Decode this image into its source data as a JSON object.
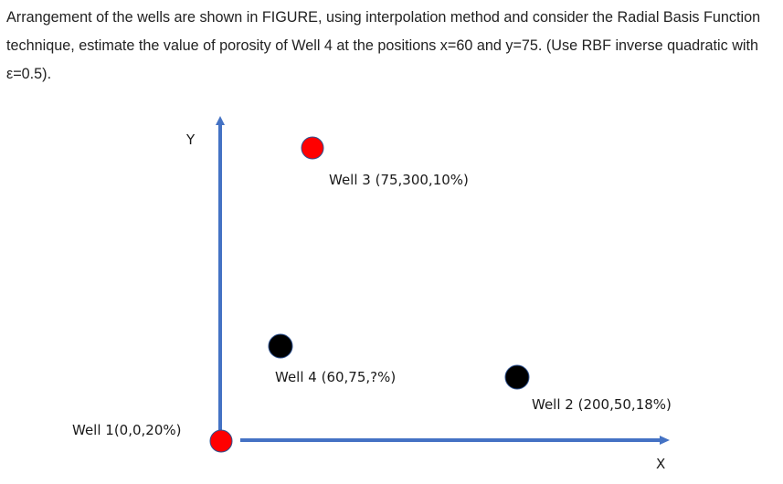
{
  "question": {
    "text": "Arrangement of the wells are shown in FIGURE, using interpolation method and consider the Radial Basis Function technique, estimate the value of porosity of Well 4 at the positions x=60 and y=75. (Use RBF inverse quadratic with ε=0.5)."
  },
  "figure": {
    "axis_y_label": "Y",
    "axis_x_label": "X",
    "axis_color": "#4472C4",
    "wells": [
      {
        "label": "Well 1(0,0,20%)",
        "color": "#FF0000"
      },
      {
        "label": "Well 2 (200,50,18%)",
        "color": "#000000"
      },
      {
        "label": "Well 3 (75,300,10%)",
        "color": "#FF0000"
      },
      {
        "label": "Well 4 (60,75,?%)",
        "color": "#000000"
      }
    ]
  }
}
